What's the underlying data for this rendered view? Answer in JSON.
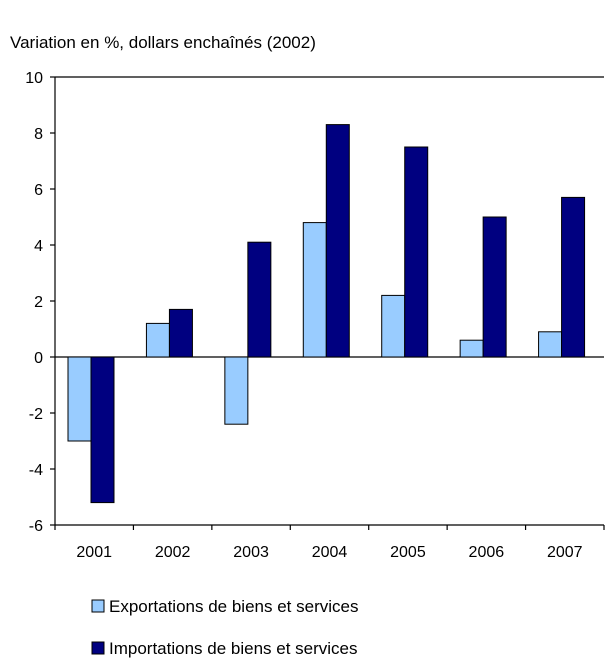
{
  "chart_data": {
    "type": "bar",
    "title": "Variation en %, dollars enchaînés (2002)",
    "xlabel": "",
    "ylabel": "",
    "categories": [
      "2001",
      "2002",
      "2003",
      "2004",
      "2005",
      "2006",
      "2007"
    ],
    "ylim": [
      -6,
      10
    ],
    "yticks": [
      10,
      8,
      6,
      4,
      2,
      0,
      -2,
      -4,
      -6
    ],
    "ytick_labels": [
      "10",
      "8",
      "6",
      "4",
      "2",
      "0",
      "-2",
      "-4",
      "-6"
    ],
    "grid": false,
    "legend_position": "bottom",
    "series": [
      {
        "name": "Exportations de biens et services",
        "color": "#99ccff",
        "values": [
          -3.0,
          1.2,
          -2.4,
          4.8,
          2.2,
          0.6,
          0.9
        ]
      },
      {
        "name": "Importations de biens et services",
        "color": "#000080",
        "values": [
          -5.2,
          1.7,
          4.1,
          8.3,
          7.5,
          5.0,
          5.7
        ]
      }
    ]
  }
}
